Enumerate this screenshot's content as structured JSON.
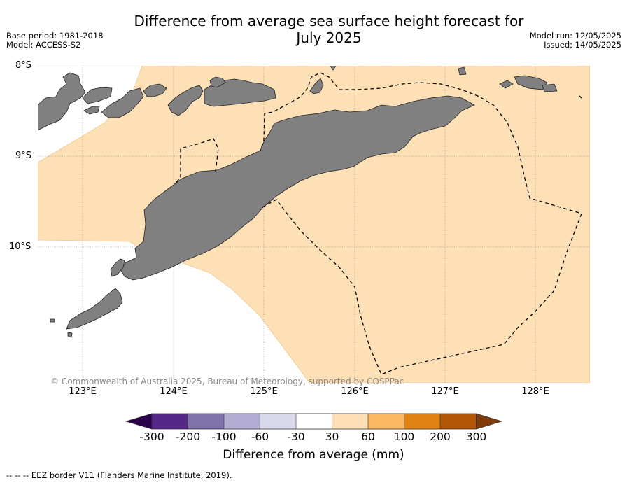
{
  "title_line1": "Difference from average sea surface height forecast for",
  "title_line2": "July 2025",
  "base_period": "Base period: 1981-2018",
  "model": "Model: ACCESS-S2",
  "model_run": "Model run: 12/05/2025",
  "issued": "Issued: 14/05/2025",
  "copyright": "© Commonwealth of Australia 2025, Bureau of Meteorology, supported by COSPPac",
  "lat_labels": [
    "8°S",
    "9°S",
    "10°S"
  ],
  "lon_labels": [
    "123°E",
    "124°E",
    "125°E",
    "126°E",
    "127°E",
    "128°E"
  ],
  "colorbar": {
    "label": "Difference from average (mm)",
    "ticks": [
      "-300",
      "-200",
      "-100",
      "-60",
      "-30",
      "30",
      "60",
      "100",
      "200",
      "300"
    ],
    "colors": [
      "#2d004b",
      "#542788",
      "#8073ac",
      "#b2abd2",
      "#d8daeb",
      "#ffffff",
      "#fee0b6",
      "#fdb863",
      "#e08214",
      "#b35806",
      "#7f3b08"
    ]
  },
  "footnote": "--  --  -- EEZ border V11 (Flanders Marine Institute, 2019).",
  "colors": {
    "anomaly_fill": "#fee0b6",
    "land": "#808080",
    "ocean_blank": "#ffffff"
  }
}
